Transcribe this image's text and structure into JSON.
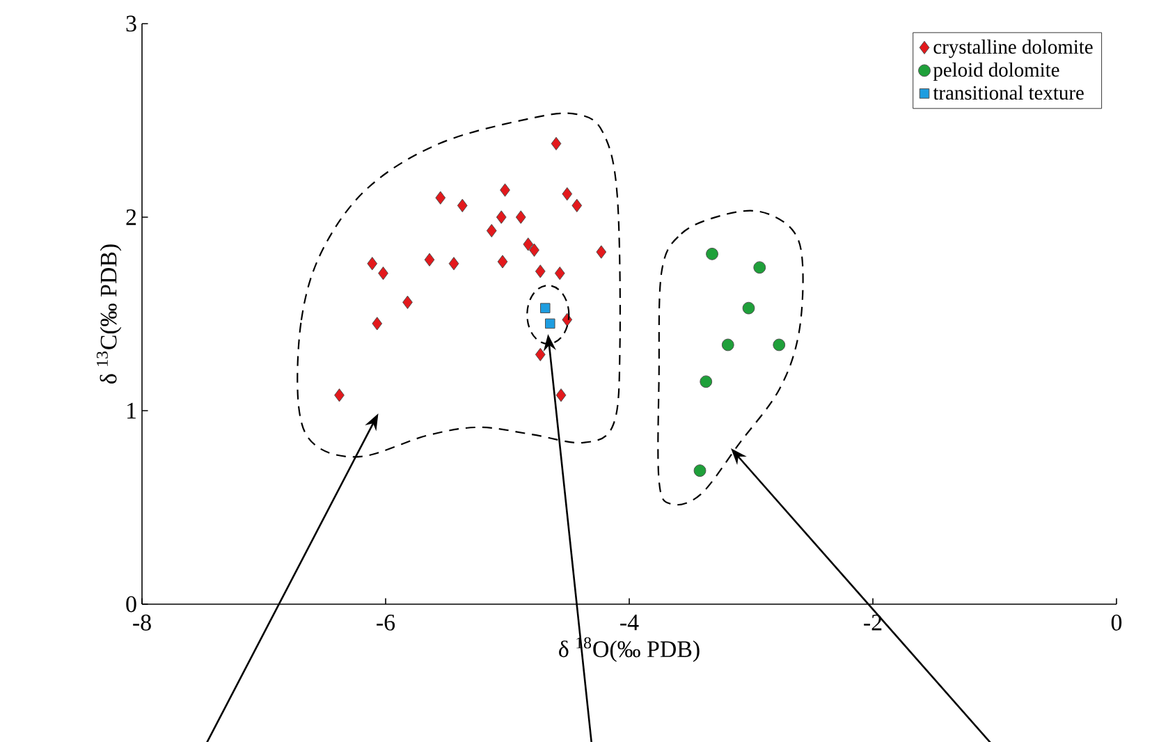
{
  "chart_data": {
    "type": "scatter",
    "xlabel": "δ $^{18}$O(‰ PDB)",
    "ylabel": "δ $^{13}$C(‰ PDB)",
    "xlim": [
      -8,
      0
    ],
    "ylim": [
      0,
      3
    ],
    "xticks": [
      -8,
      -6,
      -4,
      -2,
      0
    ],
    "yticks": [
      0,
      1,
      2,
      3
    ],
    "grid": false,
    "legend": "top right",
    "series": [
      {
        "name": "crystalline dolomite",
        "color": "#e3191c",
        "marker": "diamond",
        "x": [
          -4.6,
          -5.02,
          -5.55,
          -5.37,
          -4.51,
          -4.43,
          -5.05,
          -4.89,
          -5.13,
          -4.83,
          -4.78,
          -4.23,
          -6.11,
          -6.02,
          -5.64,
          -5.44,
          -5.04,
          -4.73,
          -4.57,
          -5.82,
          -6.07,
          -4.51,
          -4.73,
          -6.38,
          -4.56
        ],
        "values": [
          2.38,
          2.14,
          2.1,
          2.06,
          2.12,
          2.06,
          2.0,
          2.0,
          1.93,
          1.86,
          1.83,
          1.82,
          1.76,
          1.71,
          1.78,
          1.76,
          1.77,
          1.72,
          1.71,
          1.56,
          1.45,
          1.47,
          1.29,
          1.08,
          1.08
        ]
      },
      {
        "name": "peloid dolomite",
        "color": "#1fa03a",
        "marker": "circle",
        "x": [
          -3.32,
          -2.93,
          -3.02,
          -3.19,
          -2.77,
          -3.37,
          -3.42
        ],
        "values": [
          1.81,
          1.74,
          1.53,
          1.34,
          1.34,
          1.15,
          0.69
        ]
      },
      {
        "name": "transitional texture",
        "color": "#1e9de0",
        "marker": "square",
        "x": [
          -4.69,
          -4.65
        ],
        "values": [
          1.53,
          1.45
        ]
      }
    ]
  }
}
